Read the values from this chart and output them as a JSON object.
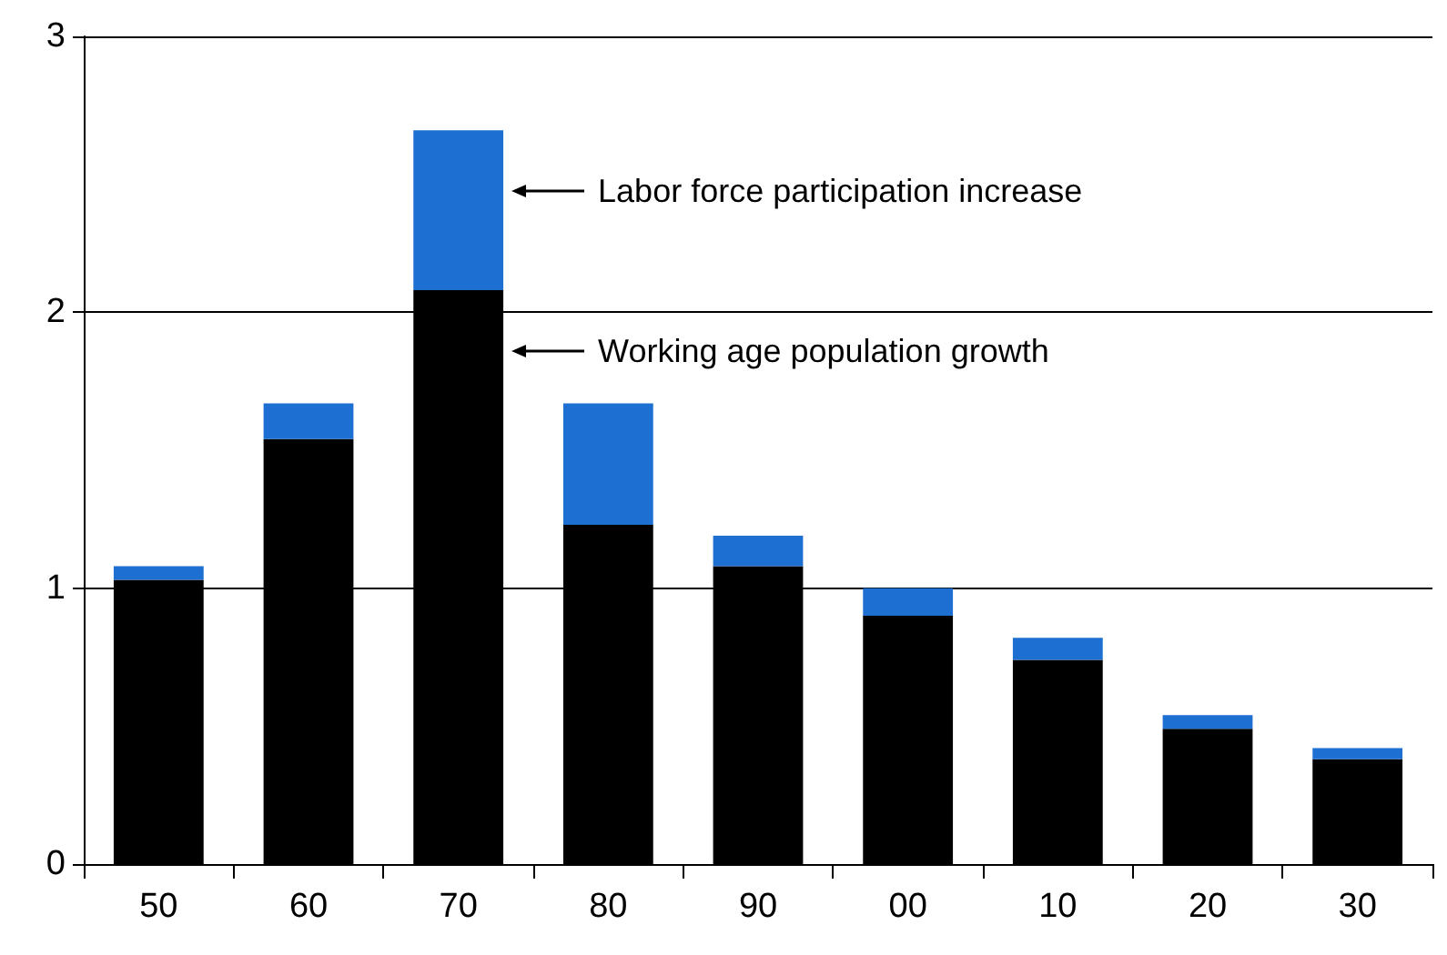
{
  "chart_data": {
    "type": "bar",
    "stacked": true,
    "categories": [
      "50",
      "60",
      "70",
      "80",
      "90",
      "00",
      "10",
      "20",
      "30"
    ],
    "series": [
      {
        "color": "#000000",
        "values": [
          1.03,
          1.54,
          2.08,
          1.23,
          1.08,
          0.9,
          0.74,
          0.49,
          0.38
        ]
      },
      {
        "color": "#1e6fd2",
        "values": [
          0.05,
          0.13,
          0.58,
          0.44,
          0.11,
          0.1,
          0.08,
          0.05,
          0.04
        ]
      }
    ],
    "ylim": [
      0,
      3
    ],
    "yticks": [
      0,
      1,
      2,
      3
    ],
    "grid": "y",
    "annotations": [
      "Labor force participation increase",
      "Working age population growth"
    ]
  }
}
